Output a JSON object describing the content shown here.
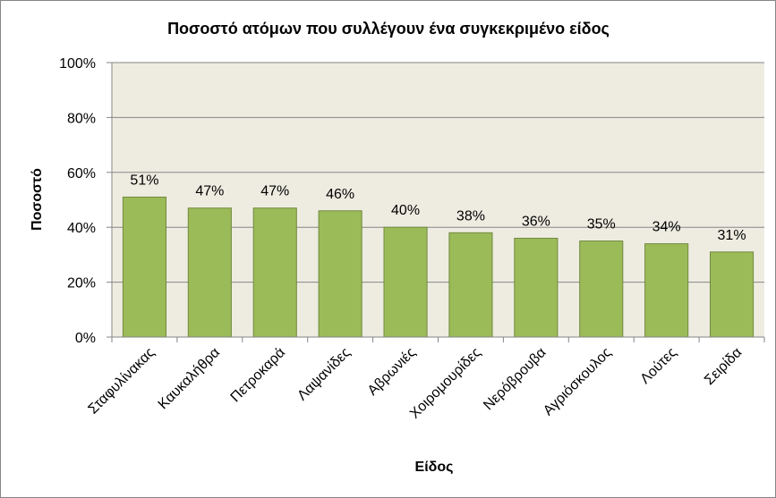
{
  "chart_data": {
    "type": "bar",
    "title": "Ποσοστό ατόμων που συλλέγουν ένα συγκεκριμένο είδος",
    "xlabel": "Είδος",
    "ylabel": "Ποσοστό",
    "ylim": [
      0,
      100
    ],
    "y_ticks": [
      0,
      20,
      40,
      60,
      80,
      100
    ],
    "y_tick_labels": [
      "0%",
      "20%",
      "40%",
      "60%",
      "80%",
      "100%"
    ],
    "categories": [
      "Σταφυλίνακας",
      "Καυκαλήθρα",
      "Πετροκαρά",
      "Λαψανίδες",
      "Αβρωνιές",
      "Χοιρομουρίδες",
      "Νερόβρουβα",
      "Αγριόσκουλος",
      "Λούτες",
      "Σειρίδα"
    ],
    "values": [
      51,
      47,
      47,
      46,
      40,
      38,
      36,
      35,
      34,
      31
    ],
    "data_labels": [
      "51%",
      "47%",
      "47%",
      "46%",
      "40%",
      "38%",
      "36%",
      "35%",
      "34%",
      "31%"
    ],
    "grid": true,
    "legend": "none",
    "colors": {
      "bar_fill": "#9BBB59",
      "bar_stroke": "#71893F",
      "plot_background": "#EEECE1",
      "gridline": "#868686"
    }
  }
}
